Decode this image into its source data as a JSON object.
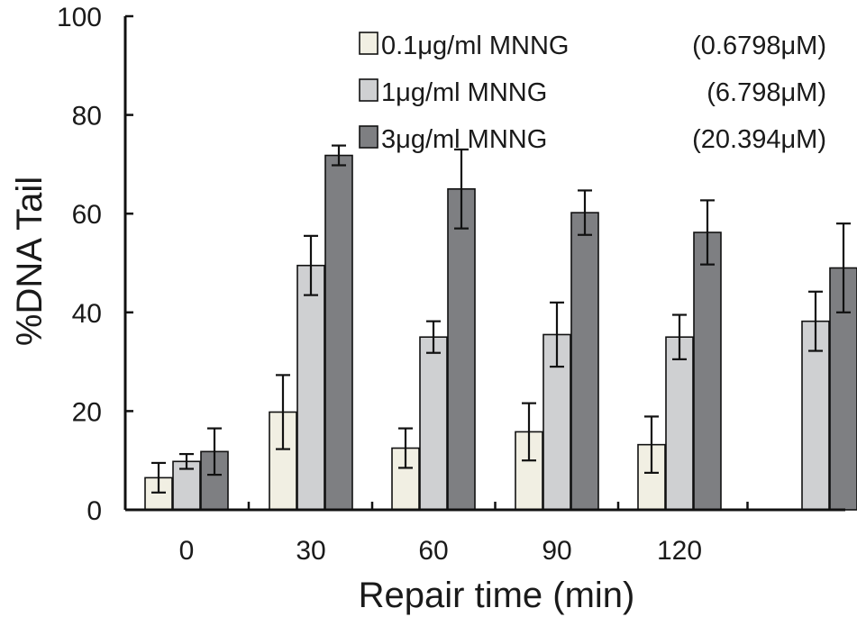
{
  "chart_data": {
    "type": "bar",
    "xlabel": "Repair time (min)",
    "ylabel": "%DNA Tail",
    "ylim": [
      0,
      100
    ],
    "yticks": [
      0,
      20,
      40,
      60,
      80,
      100
    ],
    "grid": false,
    "legend_position": "top-right",
    "categories": [
      "0",
      "30",
      "60",
      "90",
      "120",
      ""
    ],
    "series": [
      {
        "name": "0.1μg/ml MNNG",
        "concentration": "(0.6798μM)",
        "color": "#f1efe3",
        "values": [
          6.5,
          19.8,
          12.5,
          15.8,
          13.2,
          null
        ],
        "errors": [
          3.0,
          7.5,
          4.0,
          5.8,
          5.7,
          null
        ]
      },
      {
        "name": "1μg/ml MNNG",
        "concentration": "(6.798μM)",
        "color": "#cfd0d2",
        "values": [
          9.8,
          49.5,
          35.0,
          35.5,
          35.0,
          38.2
        ],
        "errors": [
          1.5,
          6.0,
          3.2,
          6.5,
          4.5,
          6.0
        ]
      },
      {
        "name": "3μg/ml MNNG",
        "concentration": "(20.394μM)",
        "color": "#7e7f82",
        "values": [
          11.8,
          71.8,
          65.0,
          60.2,
          56.2,
          49.0
        ],
        "errors": [
          4.7,
          2.0,
          8.0,
          4.5,
          6.5,
          9.0
        ]
      }
    ]
  }
}
